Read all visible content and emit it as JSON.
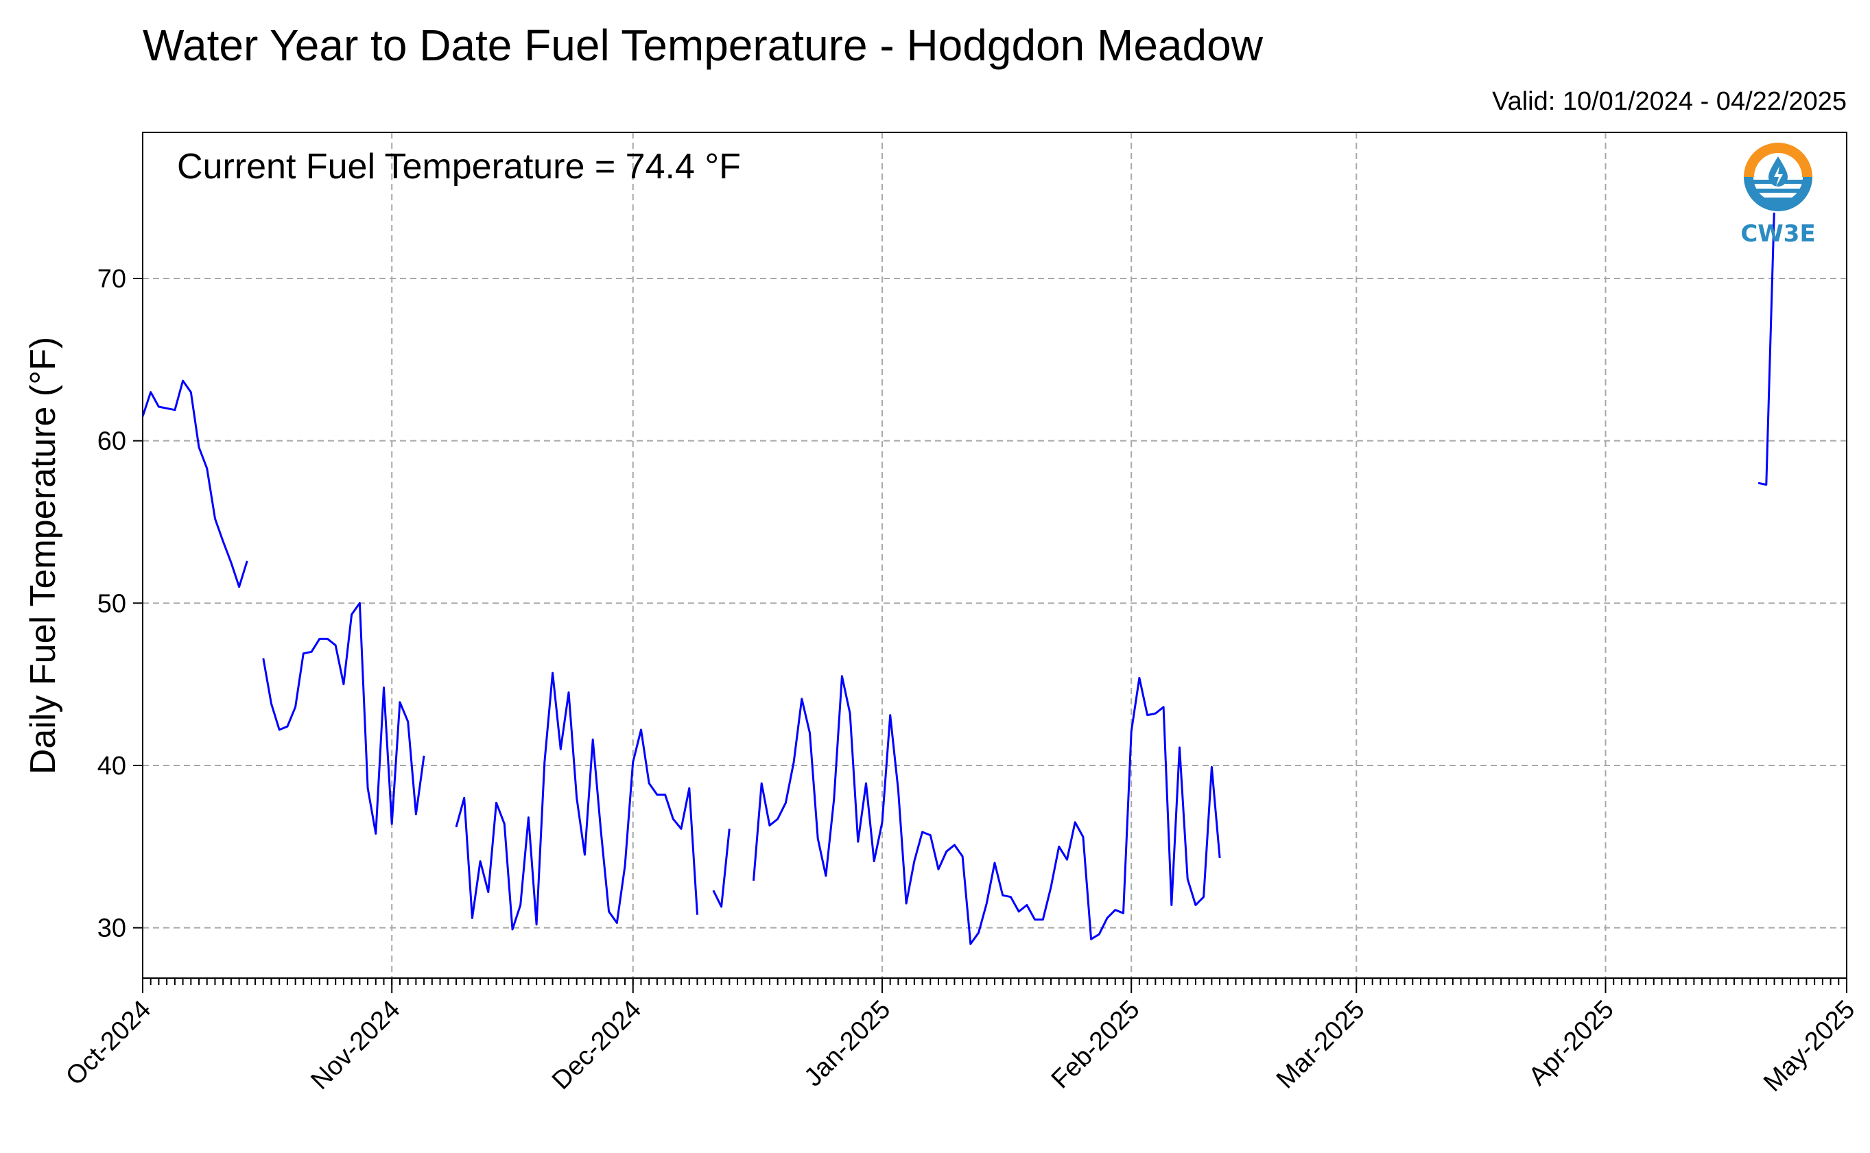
{
  "header": {
    "title": "Water Year to Date Fuel Temperature - Hodgdon Meadow",
    "valid": "Valid: 10/01/2024 - 04/22/2025",
    "current": "Current Fuel Temperature = 74.4 °F"
  },
  "logo": {
    "text": "CW3E",
    "icon": "water-drop-sun-icon"
  },
  "colors": {
    "line": "#0000ff",
    "grid": "#a8a8a8",
    "logo_orange": "#f7941d",
    "logo_blue": "#2b8bc2"
  },
  "chart_data": {
    "type": "line",
    "title": "Water Year to Date Fuel Temperature - Hodgdon Meadow",
    "ylabel": "Daily Fuel Temperature (°F)",
    "xlabel": "",
    "x_range": [
      "2024-10-01",
      "2025-05-01"
    ],
    "ylim": [
      26.9,
      79
    ],
    "yticks": [
      30,
      40,
      50,
      60,
      70
    ],
    "xticks": [
      {
        "date": "2024-10-01",
        "label": "Oct-2024"
      },
      {
        "date": "2024-11-01",
        "label": "Nov-2024"
      },
      {
        "date": "2024-12-01",
        "label": "Dec-2024"
      },
      {
        "date": "2025-01-01",
        "label": "Jan-2025"
      },
      {
        "date": "2025-02-01",
        "label": "Feb-2025"
      },
      {
        "date": "2025-03-01",
        "label": "Mar-2025"
      },
      {
        "date": "2025-04-01",
        "label": "Apr-2025"
      },
      {
        "date": "2025-05-01",
        "label": "May-2025"
      }
    ],
    "grid": true,
    "series": [
      {
        "segments": [
          {
            "start": "2024-10-01",
            "values": [
              61.5,
              63.0,
              62.1,
              62.0,
              61.9,
              63.7,
              63.0,
              59.6,
              58.3,
              55.2,
              53.8,
              52.5,
              51.0,
              52.6
            ]
          },
          {
            "start": "2024-10-16",
            "values": [
              46.6,
              43.8,
              42.2,
              42.4,
              43.6,
              46.9,
              47.0,
              47.8,
              47.8,
              47.4,
              45.0,
              49.3,
              50.0,
              38.6,
              35.8,
              44.8,
              36.4,
              43.9,
              42.7,
              37.0,
              40.6
            ]
          },
          {
            "start": "2024-11-09",
            "values": [
              36.2,
              38.0,
              30.6,
              34.1,
              32.2,
              37.7,
              36.4,
              29.9,
              31.4,
              36.8,
              30.2,
              40.2,
              45.7,
              41.0,
              44.5,
              38.0,
              34.5,
              41.6,
              36.0,
              31.0,
              30.3,
              33.8,
              40.2,
              42.2,
              38.9,
              38.2,
              38.2,
              36.7,
              36.1,
              38.6,
              30.8
            ]
          },
          {
            "start": "2024-12-11",
            "values": [
              32.3,
              31.3,
              36.1
            ]
          },
          {
            "start": "2024-12-16",
            "values": [
              32.9,
              38.9,
              36.3,
              36.7,
              37.7,
              40.2,
              44.1,
              42.0,
              35.5,
              33.2,
              37.9,
              45.5,
              43.2,
              35.3,
              38.9,
              34.1,
              36.5,
              43.1,
              38.5,
              31.5,
              34.1,
              35.9,
              35.7,
              33.6,
              34.7,
              35.1,
              34.4,
              29.0,
              29.7,
              31.5,
              34.0,
              32.0,
              31.9,
              31.0,
              31.4,
              30.5,
              30.5,
              32.5,
              35.0,
              34.2,
              36.5,
              35.6,
              29.3,
              29.6,
              30.6,
              31.1,
              30.9,
              42.1,
              45.4,
              43.1,
              43.2,
              43.6,
              31.4,
              41.1,
              33.0,
              31.4,
              31.9,
              39.9,
              34.3
            ]
          },
          {
            "start": "2025-04-20",
            "values": [
              57.4,
              57.3,
              74.4
            ]
          }
        ]
      }
    ]
  }
}
